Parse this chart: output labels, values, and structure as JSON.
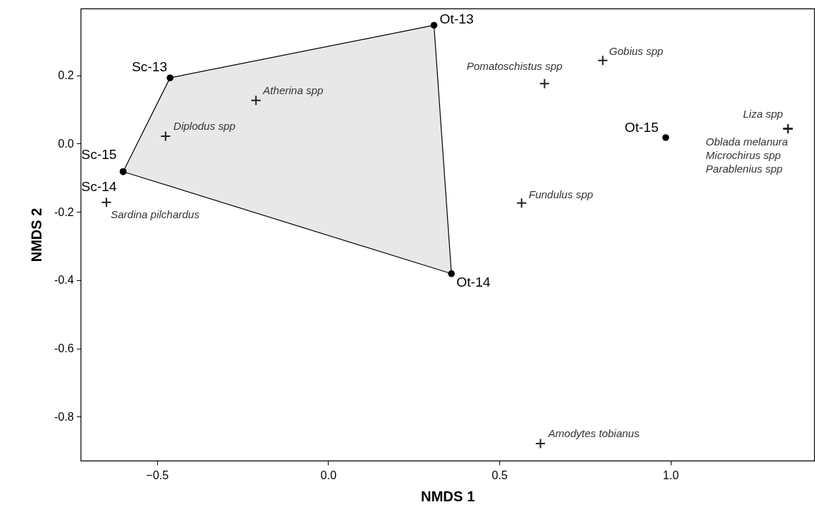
{
  "chart_data": {
    "type": "scatter",
    "xlabel": "NMDS 1",
    "ylabel": "NMDS 2",
    "xlim": [
      -0.723,
      1.42
    ],
    "ylim": [
      -0.929,
      0.396
    ],
    "xticks": [
      {
        "value": -0.5,
        "label": "−0.5"
      },
      {
        "value": 0,
        "label": "0.0"
      },
      {
        "value": 0.5,
        "label": "0.5"
      },
      {
        "value": 1,
        "label": "1.0"
      }
    ],
    "yticks": [
      {
        "value": 0.2,
        "label": "0.2"
      },
      {
        "value": 0,
        "label": "0.0"
      },
      -0.2,
      -0.4,
      -0.6,
      -0.8
    ],
    "grid": false,
    "series": [
      {
        "type": "area",
        "color": "#e8e8e8",
        "x": [
          -0.462,
          0.309,
          0.36,
          -0.599,
          -0.462
        ],
        "values": [
          0.193,
          0.347,
          -0.381,
          -0.082,
          0.193
        ]
      },
      {
        "type": "scatter",
        "marker": "circle",
        "color": "#000000",
        "x": [
          0.309,
          -0.462,
          -0.599,
          -0.599,
          0.36,
          0.986
        ],
        "values": [
          0.347,
          0.193,
          -0.082,
          -0.082,
          -0.381,
          0.018
        ],
        "value_labels": [
          "Ot-13",
          "Sc-13",
          "Sc-15",
          "Sc-14",
          "Ot-14",
          "Ot-15"
        ]
      },
      {
        "type": "scatter",
        "marker": "cross",
        "color": "#222222",
        "x": [
          -0.211,
          -0.475,
          -0.648,
          0.632,
          0.802,
          0.565,
          1.343,
          1.343,
          1.343,
          1.343,
          0.62
        ],
        "values": [
          0.127,
          0.022,
          -0.172,
          0.176,
          0.244,
          -0.174,
          0.044,
          0.044,
          0.044,
          0.044,
          -0.879
        ],
        "value_labels": [
          "Atherina spp",
          "Diplodus spp",
          "Sardina pilchardus",
          "Pomatoschistus spp",
          "Gobius spp",
          "Fundulus spp",
          "Liza spp",
          "Oblada melanura",
          "Microchirus spp",
          "Parablenius spp",
          "Amodytes tobianus"
        ]
      }
    ]
  }
}
